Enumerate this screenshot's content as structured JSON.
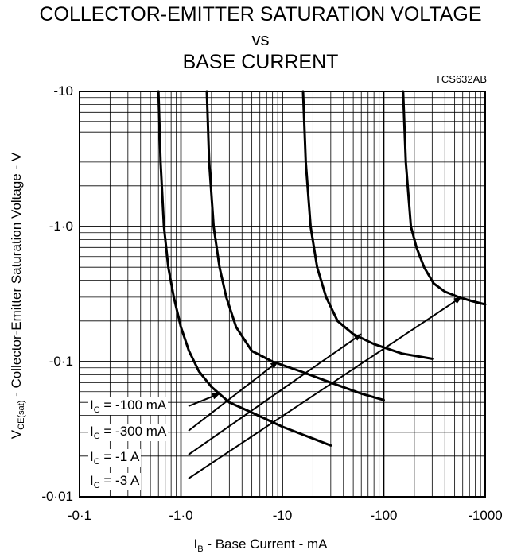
{
  "title": {
    "line1": "COLLECTOR-EMITTER SATURATION VOLTAGE",
    "line2": "vs",
    "line3": "BASE CURRENT",
    "code": "TCS632AB"
  },
  "axes": {
    "xlabel_main": "I",
    "xlabel_sub": "B",
    "xlabel_rest": " - Base Current - mA",
    "ylabel_main": "V",
    "ylabel_sub": "CE(sat)",
    "ylabel_rest": " - Collector-Emitter Saturation Voltage - V"
  },
  "curve_labels": [
    {
      "main": "I",
      "sub": "C",
      "rest": " = -100 mA"
    },
    {
      "main": "I",
      "sub": "C",
      "rest": " = -300 mA"
    },
    {
      "main": "I",
      "sub": "C",
      "rest": " = -1 A"
    },
    {
      "main": "I",
      "sub": "C",
      "rest": " = -3 A"
    }
  ],
  "chart_data": {
    "type": "line",
    "title": "COLLECTOR-EMITTER SATURATION VOLTAGE vs BASE CURRENT",
    "xlabel": "IB - Base Current - mA",
    "ylabel": "VCE(sat) - Collector-Emitter Saturation Voltage - V",
    "x_scale": "log",
    "y_scale": "log",
    "xlim": [
      -0.1,
      -1000
    ],
    "ylim": [
      -0.01,
      -10
    ],
    "x_ticks": [
      "-0·1",
      "-1·0",
      "-10",
      "-100",
      "-1000"
    ],
    "y_ticks": [
      "-0·01",
      "-0·1",
      "-1·0",
      "-10"
    ],
    "grid": true,
    "series": [
      {
        "name": "IC = -100 mA",
        "x": [
          -0.6,
          -0.63,
          -0.68,
          -0.75,
          -0.85,
          -1.0,
          -1.2,
          -1.5,
          -2.0,
          -3.0,
          -5.0,
          -10,
          -20,
          -30
        ],
        "y": [
          -10,
          -3.0,
          -1.0,
          -0.5,
          -0.3,
          -0.18,
          -0.12,
          -0.085,
          -0.065,
          -0.05,
          -0.042,
          -0.033,
          -0.027,
          -0.024
        ]
      },
      {
        "name": "IC = -300 mA",
        "x": [
          -1.8,
          -1.9,
          -2.1,
          -2.4,
          -2.8,
          -3.5,
          -5.0,
          -8.0,
          -15,
          -30,
          -60,
          -100
        ],
        "y": [
          -10,
          -3.0,
          -1.0,
          -0.5,
          -0.3,
          -0.18,
          -0.12,
          -0.1,
          -0.085,
          -0.07,
          -0.058,
          -0.052
        ]
      },
      {
        "name": "IC = -1 A",
        "x": [
          -16,
          -17,
          -19,
          -22,
          -27,
          -35,
          -50,
          -80,
          -150,
          -300
        ],
        "y": [
          -10,
          -3.0,
          -1.0,
          -0.5,
          -0.3,
          -0.2,
          -0.16,
          -0.135,
          -0.115,
          -0.105
        ]
      },
      {
        "name": "IC = -3 A",
        "x": [
          -155,
          -165,
          -185,
          -210,
          -250,
          -310,
          -400,
          -550,
          -750,
          -1000
        ],
        "y": [
          -10,
          -3.0,
          -1.0,
          -0.7,
          -0.5,
          -0.38,
          -0.33,
          -0.3,
          -0.28,
          -0.265
        ]
      }
    ]
  }
}
